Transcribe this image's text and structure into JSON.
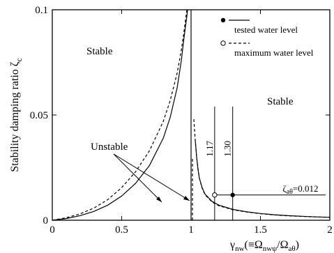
{
  "chart_data": {
    "type": "line",
    "xlabel": "γ",
    "xlabel_sub": "nw",
    "xlabel_paren": "(≡Ω",
    "xlabel_sub2": "nwψ",
    "xlabel_mid": "/Ω",
    "xlabel_sub3": "aθ",
    "xlabel_end": ")",
    "ylabel": "Stability damping ratio ζ",
    "ylabel_sub": "c",
    "xlim": [
      0,
      2
    ],
    "ylim": [
      0,
      0.1
    ],
    "x_ticks": [
      0,
      0.5,
      1,
      1.5,
      2
    ],
    "x_tick_labels": [
      "0",
      "0.5",
      "1",
      "1.5",
      "2"
    ],
    "y_ticks": [
      0,
      0.05,
      0.1
    ],
    "y_tick_labels": [
      "0",
      "0.05",
      "0.1"
    ],
    "grid": false,
    "legend_position": "top-right",
    "series": [
      {
        "name": "tested water level",
        "style": "solid",
        "marker": "filled-circle",
        "left_branch": {
          "x": [
            0,
            0.1,
            0.2,
            0.3,
            0.4,
            0.5,
            0.6,
            0.7,
            0.8,
            0.85,
            0.9,
            0.93,
            0.95,
            0.97,
            0.975
          ],
          "y": [
            0,
            0.0008,
            0.0022,
            0.0042,
            0.0072,
            0.0115,
            0.0175,
            0.026,
            0.039,
            0.049,
            0.063,
            0.076,
            0.087,
            0.097,
            0.1
          ]
        },
        "spike": {
          "x": [
            1.0,
            1.0,
            1.0
          ],
          "y": [
            0.1,
            0.05,
            0
          ]
        },
        "right_branch": {
          "x": [
            1.03,
            1.04,
            1.05,
            1.06,
            1.08,
            1.1,
            1.15,
            1.2,
            1.3,
            1.4,
            1.5,
            1.6,
            1.7,
            1.8,
            1.9,
            2.0
          ],
          "y": [
            0.038,
            0.03,
            0.024,
            0.02,
            0.0155,
            0.0125,
            0.009,
            0.0072,
            0.0052,
            0.004,
            0.0032,
            0.0026,
            0.0022,
            0.0019,
            0.0016,
            0.0014
          ]
        }
      },
      {
        "name": "maximum water level",
        "style": "dashed",
        "marker": "open-circle",
        "left_branch": {
          "x": [
            0,
            0.1,
            0.2,
            0.3,
            0.4,
            0.5,
            0.6,
            0.7,
            0.8,
            0.85,
            0.9,
            0.93,
            0.95,
            0.97
          ],
          "y": [
            0,
            0.0012,
            0.003,
            0.0058,
            0.0098,
            0.0155,
            0.023,
            0.033,
            0.047,
            0.057,
            0.07,
            0.081,
            0.09,
            0.1
          ]
        },
        "spike": {
          "x": [
            1.01,
            1.01
          ],
          "y": [
            0,
            0.03
          ]
        },
        "right_branch": {
          "x": [
            1.02,
            1.03,
            1.04,
            1.05,
            1.06,
            1.08,
            1.1,
            1.15,
            1.2,
            1.3,
            1.4,
            1.5,
            1.6,
            1.7,
            1.8,
            1.9,
            2.0
          ],
          "y": [
            0.048,
            0.038,
            0.03,
            0.0245,
            0.02,
            0.0152,
            0.0122,
            0.0087,
            0.0069,
            0.005,
            0.0039,
            0.0031,
            0.0025,
            0.0021,
            0.0018,
            0.0016,
            0.0014
          ]
        }
      }
    ],
    "markers": {
      "open_point": {
        "x": 1.17,
        "y": 0.012
      },
      "filled_point": {
        "x": 1.3,
        "y": 0.012
      },
      "damping_line_y": 0.012
    },
    "annotations": {
      "stable_left": "Stable",
      "stable_right": "Stable",
      "unstable": "Unstable",
      "vline_117": "1.17",
      "vline_130": "1.30",
      "zeta_prefix": "ζ",
      "zeta_sub": "aθ",
      "zeta_value": "=0.012"
    },
    "legend": {
      "tested": "tested water level",
      "maximum": "maximum water level"
    }
  }
}
